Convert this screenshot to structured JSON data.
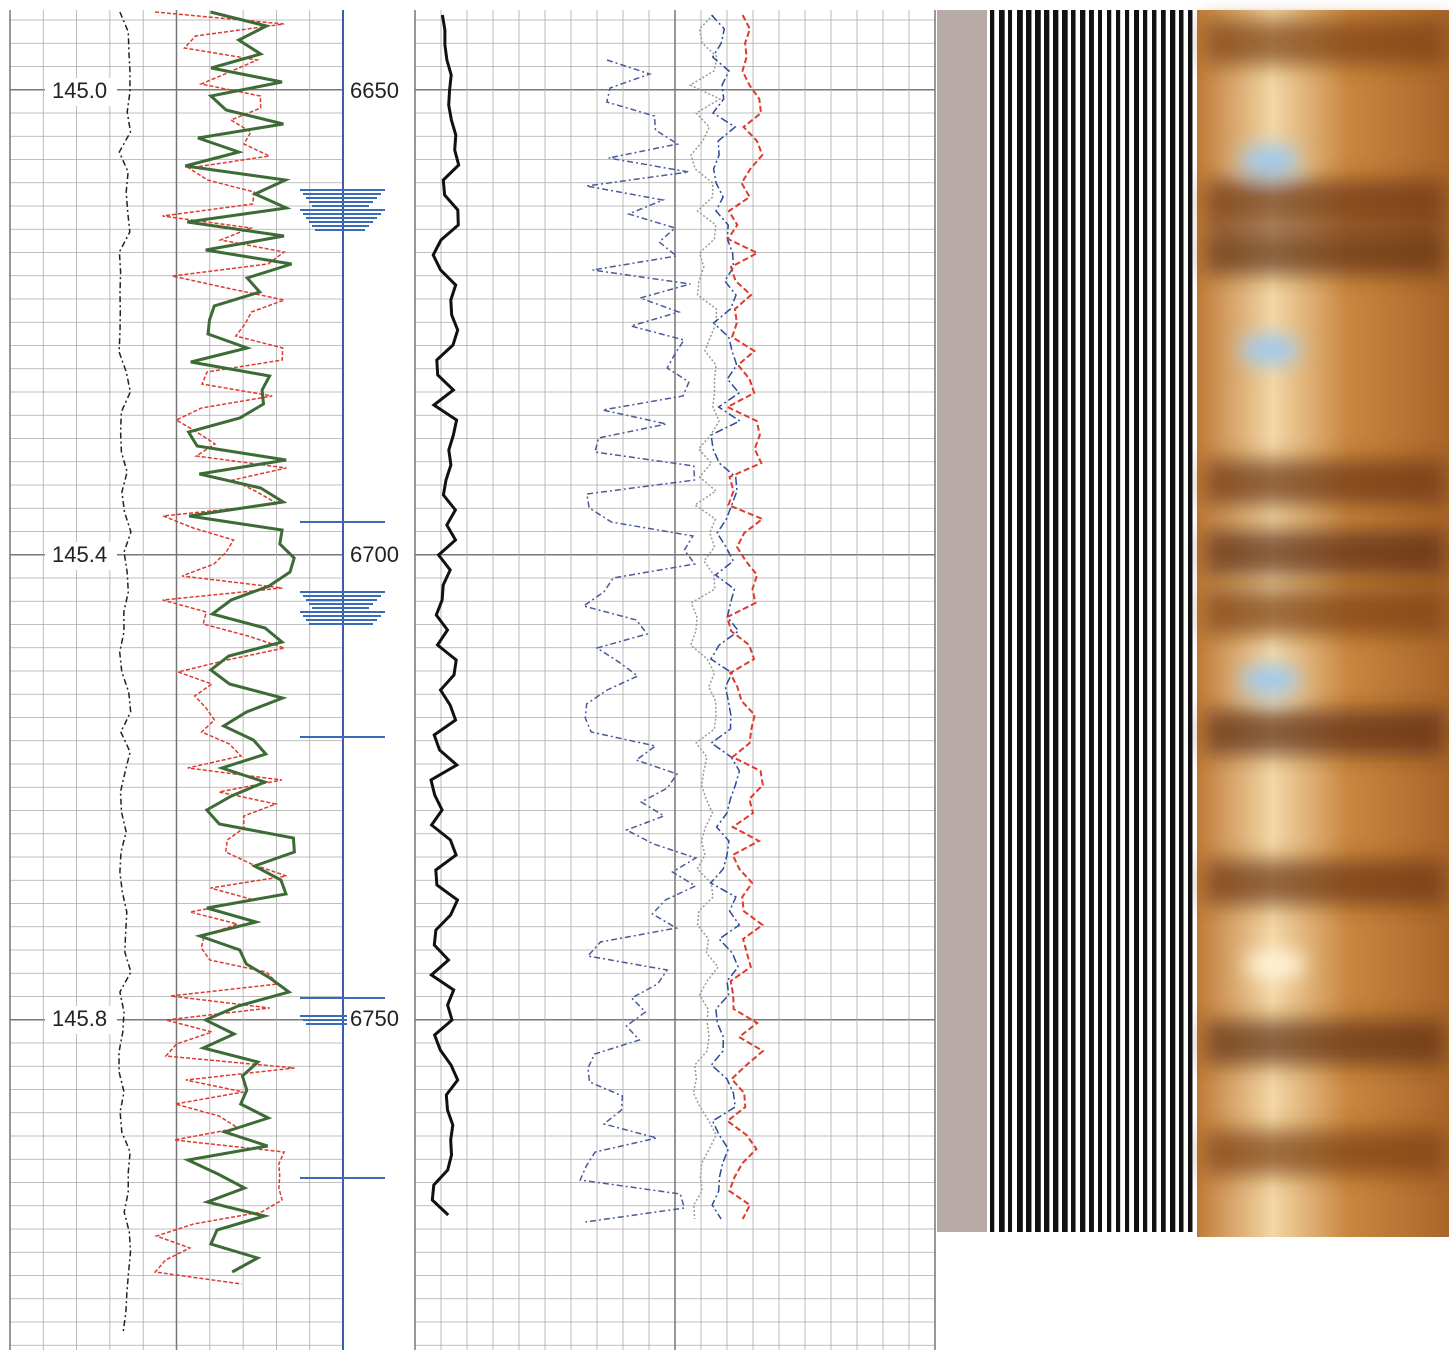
{
  "left_scale": {
    "labels": [
      "145.0",
      "145.4",
      "145.8"
    ]
  },
  "depth_scale": {
    "labels": [
      "6650",
      "6700",
      "6750"
    ]
  }
}
